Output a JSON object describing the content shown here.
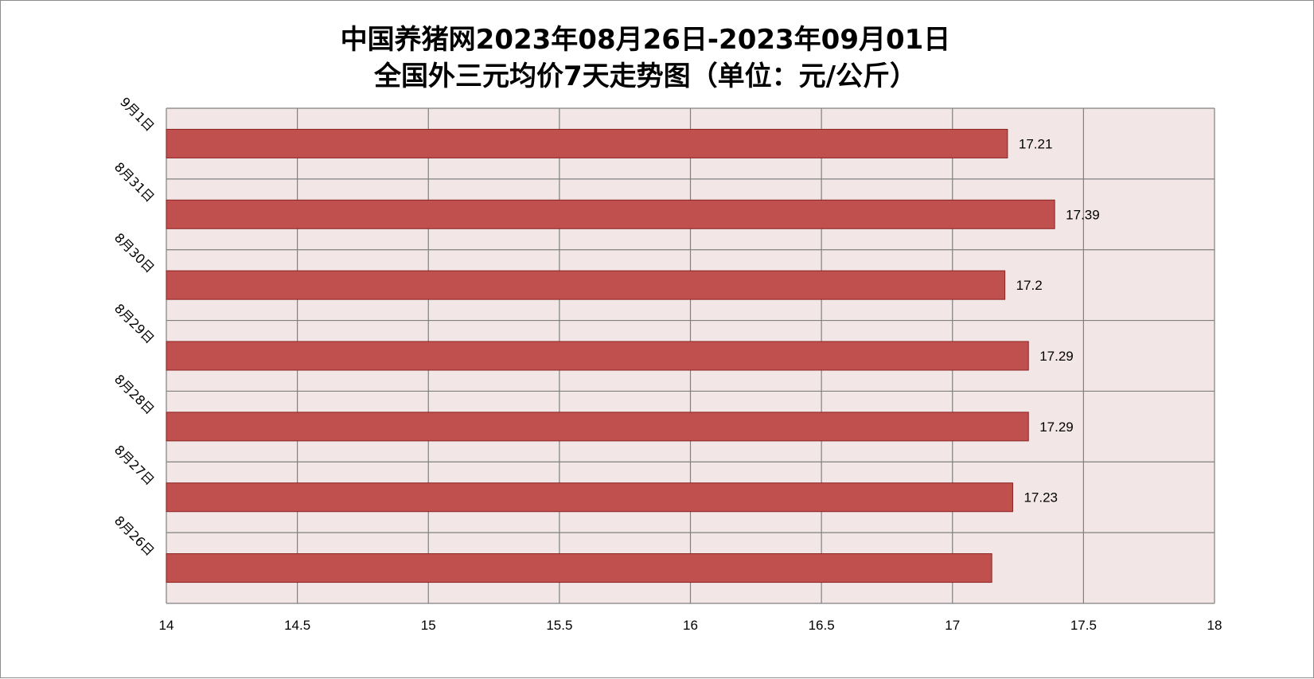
{
  "chart_data": {
    "type": "bar",
    "orientation": "horizontal",
    "title_line1": "中国养猪网2023年08月26日-2023年09月01日",
    "title_line2": "全国外三元均价7天走势图（单位：元/公斤）",
    "categories": [
      "9月1日",
      "8月31日",
      "8月30日",
      "8月29日",
      "8月28日",
      "8月27日",
      "8月26日"
    ],
    "values": [
      17.21,
      17.39,
      17.2,
      17.29,
      17.29,
      17.23,
      17.15
    ],
    "data_labels": [
      "17.21",
      "17.39",
      "17.2",
      "17.29",
      "17.29",
      "17.23",
      ""
    ],
    "x_ticks": [
      "14",
      "14.5",
      "15",
      "15.5",
      "16",
      "16.5",
      "17",
      "17.5",
      "18"
    ],
    "xlim": [
      14,
      18
    ],
    "grid": true,
    "legend": "none",
    "colors": {
      "bar_fill": "#c0504d",
      "bar_stroke": "#8b2323",
      "plot_background": "#f2e6e6",
      "grid": "#808080"
    }
  }
}
